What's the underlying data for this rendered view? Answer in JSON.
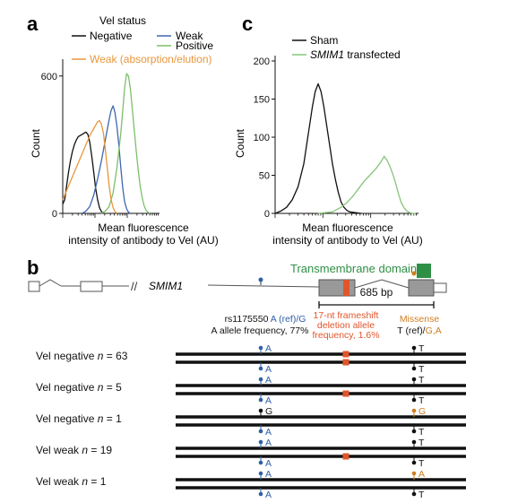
{
  "panel_labels": {
    "a": "a",
    "b": "b",
    "c": "c"
  },
  "colors": {
    "negative": "#111111",
    "weak": "#3f67b0",
    "positive": "#7dbf6a",
    "weak_ae": "#e8973c",
    "sham": "#111111",
    "smim1": "#86c57a",
    "deletion": "#e0552b",
    "tm_domain": "#2f8f45",
    "snp_blue": "#2f5fa8",
    "missense": "#d07f1f",
    "exon_fill": "#999999"
  },
  "chart_data": [
    {
      "type": "line",
      "panel": "a",
      "legend_title": "Vel status",
      "xlabel": "Mean fluorescence\nintensity of antibody to Vel (AU)",
      "ylabel": "Count",
      "yticks": [
        "0",
        "600"
      ],
      "ylim": [
        0,
        650
      ],
      "xlim": [
        0,
        100
      ],
      "series": [
        {
          "name": "Negative",
          "color": "#111111",
          "x": [
            0,
            2,
            4,
            6,
            8,
            10,
            12,
            14,
            16,
            18,
            20,
            22,
            24,
            26,
            28,
            30,
            32,
            34,
            36,
            38,
            40,
            42
          ],
          "y": [
            40,
            60,
            120,
            180,
            230,
            270,
            300,
            320,
            335,
            340,
            345,
            350,
            355,
            345,
            310,
            250,
            180,
            110,
            60,
            25,
            8,
            0
          ]
        },
        {
          "name": "Weak",
          "color": "#3f67b0",
          "x": [
            20,
            24,
            28,
            32,
            36,
            40,
            44,
            48,
            50,
            52,
            54,
            56,
            58,
            60,
            62,
            64,
            66,
            68,
            70
          ],
          "y": [
            0,
            10,
            30,
            80,
            150,
            230,
            320,
            410,
            450,
            470,
            440,
            380,
            300,
            200,
            110,
            50,
            20,
            5,
            0
          ]
        },
        {
          "name": "Positive",
          "color": "#7dbf6a",
          "x": [
            40,
            44,
            48,
            52,
            56,
            60,
            62,
            64,
            66,
            68,
            70,
            72,
            74,
            76,
            78,
            80,
            82,
            84,
            86,
            88,
            90
          ],
          "y": [
            0,
            10,
            30,
            90,
            200,
            350,
            450,
            550,
            610,
            600,
            540,
            450,
            360,
            270,
            190,
            120,
            70,
            35,
            15,
            5,
            0
          ]
        },
        {
          "name": "Weak (absorption/elution)",
          "color": "#e8973c",
          "x": [
            0,
            4,
            8,
            12,
            16,
            20,
            24,
            28,
            32,
            34,
            36,
            38,
            40,
            42,
            44,
            46,
            48,
            50,
            52,
            54,
            56
          ],
          "y": [
            60,
            100,
            140,
            180,
            220,
            260,
            300,
            340,
            370,
            385,
            400,
            405,
            390,
            350,
            280,
            200,
            120,
            60,
            25,
            8,
            0
          ]
        }
      ]
    },
    {
      "type": "line",
      "panel": "c",
      "xlabel": "Mean fluorescence\nintensity of antibody to Vel (AU)",
      "ylabel": "Count",
      "yticks": [
        "0",
        "50",
        "100",
        "150",
        "200"
      ],
      "ylim": [
        0,
        200
      ],
      "xlim": [
        0,
        100
      ],
      "series": [
        {
          "name": "Sham",
          "color": "#111111",
          "x": [
            0,
            4,
            8,
            12,
            16,
            20,
            22,
            24,
            26,
            28,
            30,
            32,
            34,
            36,
            38,
            40,
            42,
            44,
            46,
            48,
            50,
            52,
            56,
            60
          ],
          "y": [
            0,
            3,
            8,
            18,
            35,
            65,
            90,
            115,
            140,
            160,
            170,
            160,
            140,
            115,
            90,
            65,
            45,
            28,
            15,
            8,
            4,
            2,
            1,
            0
          ]
        },
        {
          "name": "SMIM1 transfected",
          "name_parts": [
            "SMIM1",
            " transfected"
          ],
          "color": "#86c57a",
          "x": [
            30,
            40,
            46,
            50,
            54,
            58,
            62,
            66,
            70,
            74,
            76,
            78,
            80,
            82,
            84,
            86,
            88,
            90,
            92,
            94,
            96,
            98
          ],
          "y": [
            0,
            2,
            8,
            14,
            22,
            32,
            42,
            50,
            58,
            68,
            75,
            70,
            62,
            52,
            40,
            26,
            14,
            7,
            3,
            1,
            0,
            0
          ]
        }
      ]
    }
  ],
  "panel_c": {
    "legend_sham": "Sham",
    "legend_smim1_italic": "SMIM1",
    "legend_smim1_rest": " transfected"
  },
  "panel_b": {
    "gene_name": "SMIM1",
    "tm_label": "Transmembrane domain",
    "scale_label": "685 bp",
    "rs_header": {
      "id": "rs1175550",
      "alleles": " A (ref)/G",
      "freq": "A allele frequency, 77%"
    },
    "del_header": [
      "17-nt frameshift",
      "deletion allele",
      "frequency, 1.6%"
    ],
    "mis_header": {
      "title": "Missense",
      "ref": "T (ref)/",
      "alt": "G,A"
    },
    "rows": [
      {
        "label": "Vel negative n = 63",
        "label_prefix": "Vel negative ",
        "n_sym": "n",
        "n_val": " = 63",
        "top": {
          "snp": "A",
          "del": true,
          "mis": "T"
        },
        "bottom": {
          "snp": "A",
          "del": true,
          "mis": "T"
        }
      },
      {
        "label": "Vel negative n = 5",
        "label_prefix": "Vel negative ",
        "n_sym": "n",
        "n_val": " = 5",
        "top": {
          "snp": "A",
          "del": false,
          "mis": "T"
        },
        "bottom": {
          "snp": "A",
          "del": true,
          "mis": "T"
        }
      },
      {
        "label": "Vel negative n = 1",
        "label_prefix": "Vel negative ",
        "n_sym": "n",
        "n_val": " = 1",
        "top": {
          "snp": "G",
          "del": false,
          "mis": "G"
        },
        "bottom": {
          "snp": "A",
          "del": false,
          "mis": "T"
        }
      },
      {
        "label": "Vel weak n = 19",
        "label_prefix": "Vel weak ",
        "n_sym": "n",
        "n_val": " = 19",
        "top": {
          "snp": "A",
          "del": false,
          "mis": "T"
        },
        "bottom": {
          "snp": "A",
          "del": true,
          "mis": "T"
        }
      },
      {
        "label": "Vel weak n = 1",
        "label_prefix": "Vel weak ",
        "n_sym": "n",
        "n_val": " = 1",
        "top": {
          "snp": "A",
          "del": false,
          "mis": "A"
        },
        "bottom": {
          "snp": "A",
          "del": false,
          "mis": "T"
        }
      }
    ]
  }
}
